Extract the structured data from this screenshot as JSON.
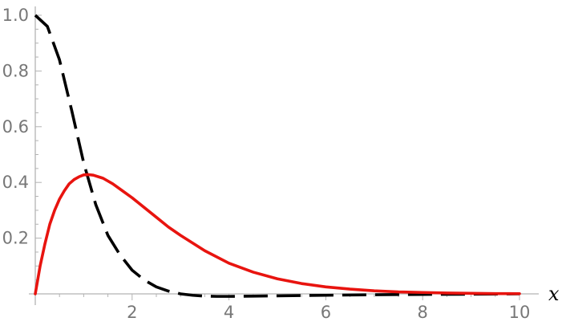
{
  "chart_data": {
    "type": "line",
    "title": "",
    "xlabel": "x",
    "ylabel": "",
    "xlim": [
      0,
      10
    ],
    "ylim": [
      0,
      1.0
    ],
    "x_ticks": [
      2,
      4,
      6,
      8,
      10
    ],
    "x_tick_labels": [
      "2",
      "4",
      "6",
      "8",
      "10"
    ],
    "y_ticks": [
      0.2,
      0.4,
      0.6,
      0.8,
      1.0
    ],
    "y_tick_labels": [
      "0.2",
      "0.4",
      "0.6",
      "0.8",
      "1.0"
    ],
    "grid": false,
    "series": [
      {
        "style": "dashed",
        "color": "#000000",
        "x": [
          0,
          0.25,
          0.5,
          0.75,
          1.0,
          1.25,
          1.5,
          1.75,
          2.0,
          2.25,
          2.5,
          2.75,
          3.0,
          3.25,
          3.5,
          3.75,
          4.0,
          4.5,
          5.0,
          5.5,
          6.0,
          7.0,
          8.0,
          9.0,
          10.0
        ],
        "y": [
          1.0,
          0.96,
          0.84,
          0.66,
          0.47,
          0.32,
          0.21,
          0.14,
          0.085,
          0.05,
          0.025,
          0.01,
          0.0,
          -0.005,
          -0.008,
          -0.009,
          -0.009,
          -0.008,
          -0.007,
          -0.006,
          -0.005,
          -0.003,
          -0.002,
          -0.001,
          0.0
        ]
      },
      {
        "style": "solid",
        "color": "#e8140f",
        "x": [
          0,
          0.1,
          0.2,
          0.3,
          0.4,
          0.5,
          0.6,
          0.7,
          0.8,
          0.9,
          1.0,
          1.1,
          1.2,
          1.4,
          1.6,
          1.8,
          2.0,
          2.25,
          2.5,
          2.75,
          3.0,
          3.5,
          4.0,
          4.5,
          5.0,
          5.5,
          6.0,
          6.5,
          7.0,
          7.5,
          8.0,
          8.5,
          9.0,
          9.5,
          10.0
        ],
        "y": [
          0.0,
          0.1,
          0.18,
          0.25,
          0.3,
          0.34,
          0.37,
          0.395,
          0.41,
          0.42,
          0.427,
          0.428,
          0.426,
          0.415,
          0.395,
          0.37,
          0.345,
          0.31,
          0.275,
          0.24,
          0.21,
          0.155,
          0.11,
          0.078,
          0.054,
          0.037,
          0.025,
          0.017,
          0.011,
          0.007,
          0.005,
          0.003,
          0.002,
          0.001,
          0.0007
        ]
      }
    ]
  }
}
